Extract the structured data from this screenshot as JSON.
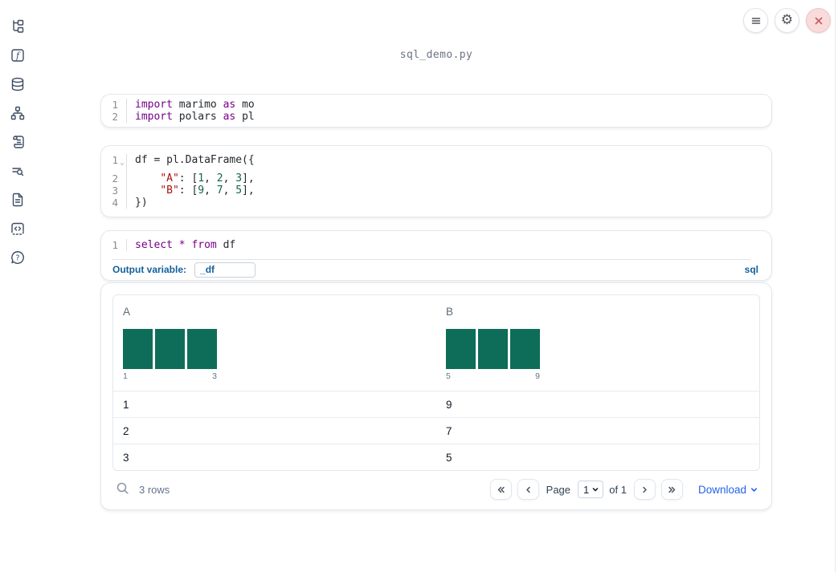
{
  "app": {
    "title": "sql_demo.py"
  },
  "topbar": {
    "icons": [
      "hamburger-icon",
      "gear-icon",
      "close-icon"
    ]
  },
  "sidebar": {
    "icons": [
      "file-tree-icon",
      "function-icon",
      "database-icon",
      "dependency-graph-icon",
      "scroll-icon",
      "list-search-icon",
      "document-icon",
      "snippets-icon",
      "help-icon"
    ]
  },
  "colors": {
    "accent_blue": "#14609a",
    "link_blue": "#2563eb",
    "histogram_teal": "#0e6d58",
    "syntax_keyword": "#770088",
    "syntax_string": "#aa1111",
    "syntax_number": "#116644",
    "close_button_red": "#c45f5f"
  },
  "cells": [
    {
      "type": "python",
      "lines": [
        {
          "n": "1",
          "tokens": [
            [
              "kw",
              "import"
            ],
            [
              "pl",
              " marimo "
            ],
            [
              "kw",
              "as"
            ],
            [
              "pl",
              " mo"
            ]
          ]
        },
        {
          "n": "2",
          "tokens": [
            [
              "kw",
              "import"
            ],
            [
              "pl",
              " polars "
            ],
            [
              "kw",
              "as"
            ],
            [
              "pl",
              " pl"
            ]
          ]
        }
      ]
    },
    {
      "type": "python",
      "lines": [
        {
          "n": "1",
          "fold": true,
          "tokens": [
            [
              "pl",
              "df = pl.DataFrame({"
            ]
          ]
        },
        {
          "n": "2",
          "tokens": [
            [
              "pl",
              "    "
            ],
            [
              "str",
              "\"A\""
            ],
            [
              "pl",
              ": ["
            ],
            [
              "num",
              "1"
            ],
            [
              "pl",
              ", "
            ],
            [
              "num",
              "2"
            ],
            [
              "pl",
              ", "
            ],
            [
              "num",
              "3"
            ],
            [
              "pl",
              "],"
            ]
          ]
        },
        {
          "n": "3",
          "tokens": [
            [
              "pl",
              "    "
            ],
            [
              "str",
              "\"B\""
            ],
            [
              "pl",
              ": ["
            ],
            [
              "num",
              "9"
            ],
            [
              "pl",
              ", "
            ],
            [
              "num",
              "7"
            ],
            [
              "pl",
              ", "
            ],
            [
              "num",
              "5"
            ],
            [
              "pl",
              "],"
            ]
          ]
        },
        {
          "n": "4",
          "tokens": [
            [
              "pl",
              "})"
            ]
          ]
        }
      ]
    },
    {
      "type": "sql",
      "lines": [
        {
          "n": "1",
          "tokens": [
            [
              "kw",
              "select"
            ],
            [
              "pl",
              " "
            ],
            [
              "kw",
              "*"
            ],
            [
              "pl",
              " "
            ],
            [
              "kw",
              "from"
            ],
            [
              "pl",
              " df"
            ]
          ]
        }
      ],
      "footer": {
        "output_variable_label": "Output variable:",
        "output_variable_value": "_df",
        "language_badge": "sql"
      }
    }
  ],
  "table": {
    "columns": [
      {
        "name": "A",
        "histogram": {
          "bars": [
            1,
            1,
            1
          ],
          "min_label": "1",
          "max_label": "3"
        }
      },
      {
        "name": "B",
        "histogram": {
          "bars": [
            1,
            1,
            1
          ],
          "min_label": "5",
          "max_label": "9"
        }
      }
    ],
    "rows": [
      [
        "1",
        "9"
      ],
      [
        "2",
        "7"
      ],
      [
        "3",
        "5"
      ]
    ],
    "footer": {
      "row_count": "3 rows",
      "page_label": "Page",
      "page_value": "1",
      "of_label": "of 1",
      "download_label": "Download"
    }
  }
}
